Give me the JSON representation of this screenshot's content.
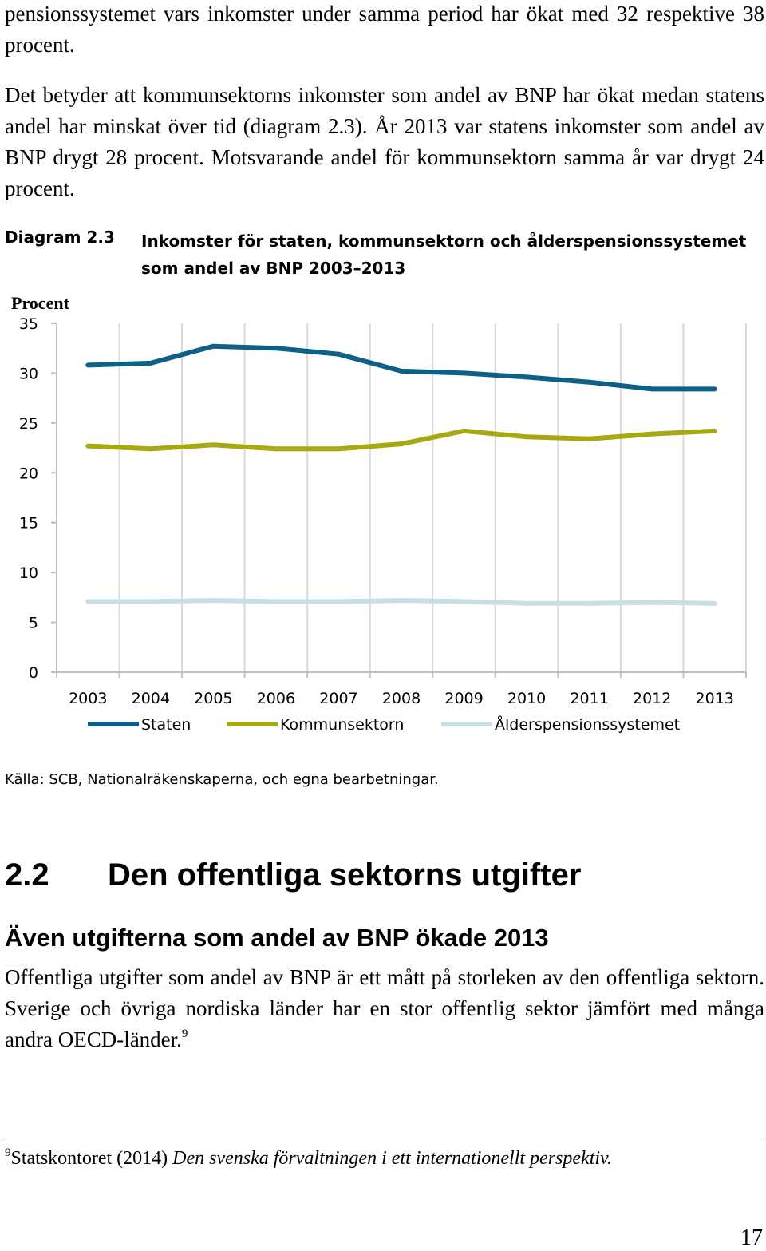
{
  "body": {
    "para1": "pensionssystemet vars inkomster under samma period har ökat med 32 respektive 38 procent.",
    "para2": "Det betyder att kommunsektorns inkomster som andel av BNP har ökat medan statens andel har minskat över tid (diagram 2.3). År 2013 var statens inkomster som andel av BNP drygt 28 procent. Motsvarande andel för kommunsektorn samma år var drygt 24 procent."
  },
  "diagram": {
    "number": "Diagram 2.3",
    "title": "Inkomster för staten, kommunsektorn och ålderspensionssystemet som andel av BNP 2003–2013",
    "source": "Källa: SCB, Nationalräkenskaperna, och egna bearbetningar."
  },
  "chart_data": {
    "type": "line",
    "ylabel": "Procent",
    "xlabel": "",
    "ylim": [
      0,
      35
    ],
    "yticks": [
      "35",
      "30",
      "25",
      "20",
      "15",
      "10",
      "5",
      "0"
    ],
    "categories": [
      "2003",
      "2004",
      "2005",
      "2006",
      "2007",
      "2008",
      "2009",
      "2010",
      "2011",
      "2012",
      "2013"
    ],
    "grid": "vertical",
    "legend": "bottom",
    "series": [
      {
        "name": "Staten",
        "color": "#0f6087",
        "values": [
          30.8,
          31.0,
          32.7,
          32.5,
          31.9,
          30.2,
          30.0,
          29.6,
          29.1,
          28.4,
          28.4
        ]
      },
      {
        "name": "Kommunsektorn",
        "color": "#a6aa10",
        "values": [
          22.7,
          22.4,
          22.8,
          22.4,
          22.4,
          22.9,
          24.2,
          23.6,
          23.4,
          23.9,
          24.2
        ]
      },
      {
        "name": "Ålderspensionssystemet",
        "color": "#c8dde6",
        "values": [
          7.1,
          7.1,
          7.2,
          7.1,
          7.1,
          7.2,
          7.1,
          6.9,
          6.9,
          7.0,
          6.9
        ]
      }
    ]
  },
  "section": {
    "number": "2.2",
    "title": "Den offentliga sektorns utgifter"
  },
  "subsection": {
    "title": "Även utgifterna som andel av BNP ökade 2013"
  },
  "para3": {
    "text": "Offentliga utgifter som andel av BNP är ett mått på storleken av den offentliga sektorn. Sverige och övriga nordiska länder har en stor offentlig sektor jämfört med många andra OECD-länder.",
    "footnote_ref": "9"
  },
  "footnote": {
    "number": "9",
    "text": "Statskontoret (2014) ",
    "title": "Den svenska förvaltningen i ett internationellt perspektiv."
  },
  "page_number": "17"
}
